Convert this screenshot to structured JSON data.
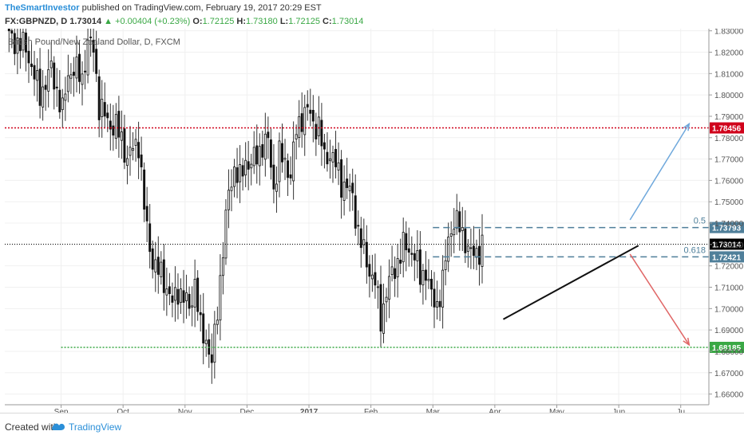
{
  "header": {
    "author": "TheSmartInvestor",
    "published_text": "published on TradingView.com, February 19, 2017 20:29 EST",
    "symbol": "FX:GBPNZD, D",
    "last": "1.73014",
    "change": "▲ +0.00404 (+0.23%)",
    "o_label": "O:",
    "o": "1.72125",
    "h_label": "H:",
    "h": "1.73180",
    "l_label": "L:",
    "l": "1.72125",
    "c_label": "C:",
    "c": "1.73014"
  },
  "footer": {
    "created_with": "Created with",
    "brand": "TradingView"
  },
  "chart_data": {
    "type": "candlestick",
    "title": "British Pound/New Zealand Dollar, D, FXCM",
    "ylim": [
      1.655,
      1.831
    ],
    "y_ticks": [
      "1.66000",
      "1.67000",
      "1.68000",
      "1.69000",
      "1.70000",
      "1.71000",
      "1.72000",
      "1.73000",
      "1.74000",
      "1.75000",
      "1.76000",
      "1.77000",
      "1.78000",
      "1.79000",
      "1.80000",
      "1.81000",
      "1.82000",
      "1.83000"
    ],
    "x_labels": [
      "Sep",
      "Oct",
      "Nov",
      "Dec",
      "2017",
      "Feb",
      "Mar",
      "Apr",
      "May",
      "Jun",
      "Ju"
    ],
    "price_levels": [
      {
        "label": "1.78456",
        "value": 1.78456,
        "color": "#d0021b",
        "style": "dotted"
      },
      {
        "label": "1.73793",
        "value": 1.73793,
        "color": "#4f7f9a",
        "style": "dashed",
        "fib": "0.5"
      },
      {
        "label": "1.72421",
        "value": 1.72421,
        "color": "#4f7f9a",
        "style": "dashed",
        "fib": "0.618"
      },
      {
        "label": "1.68185",
        "value": 1.68185,
        "color": "#3aa845",
        "style": "dotted"
      },
      {
        "label": "1.73014",
        "value": 1.73014,
        "color": "#000000",
        "style": "dotted",
        "current": true
      }
    ],
    "trendline": {
      "from": [
        1.695
      ],
      "to": [
        1.7295
      ]
    },
    "arrows": [
      {
        "direction": "up",
        "color": "#6fa8dc",
        "from_value": 1.7415,
        "to_value": 1.7865
      },
      {
        "direction": "down",
        "color": "#e06666",
        "from_value": 1.7255,
        "to_value": 1.683
      }
    ],
    "close_path": [
      [
        0,
        1.827
      ],
      [
        6,
        1.822
      ],
      [
        11,
        1.8
      ],
      [
        15,
        1.812
      ],
      [
        19,
        1.792
      ],
      [
        21,
        1.81
      ],
      [
        23,
        1.812
      ],
      [
        26,
        1.808
      ],
      [
        28,
        1.824
      ],
      [
        30,
        1.822
      ],
      [
        32,
        1.795
      ],
      [
        34,
        1.79
      ],
      [
        36,
        1.786
      ],
      [
        38,
        1.785
      ],
      [
        40,
        1.779
      ],
      [
        42,
        1.77
      ],
      [
        44,
        1.775
      ],
      [
        46,
        1.778
      ],
      [
        48,
        1.747
      ],
      [
        50,
        1.728
      ],
      [
        52,
        1.719
      ],
      [
        54,
        1.716
      ],
      [
        56,
        1.71
      ],
      [
        58,
        1.702
      ],
      [
        60,
        1.709
      ],
      [
        62,
        1.705
      ],
      [
        64,
        1.7
      ],
      [
        66,
        1.712
      ],
      [
        68,
        1.69
      ],
      [
        70,
        1.686
      ],
      [
        72,
        1.674
      ],
      [
        74,
        1.7
      ],
      [
        76,
        1.728
      ],
      [
        78,
        1.754
      ],
      [
        80,
        1.766
      ],
      [
        82,
        1.76
      ],
      [
        84,
        1.769
      ],
      [
        86,
        1.768
      ],
      [
        88,
        1.771
      ],
      [
        90,
        1.777
      ],
      [
        92,
        1.778
      ],
      [
        94,
        1.756
      ],
      [
        96,
        1.772
      ],
      [
        98,
        1.768
      ],
      [
        100,
        1.763
      ],
      [
        102,
        1.783
      ],
      [
        104,
        1.79
      ],
      [
        106,
        1.793
      ],
      [
        108,
        1.787
      ],
      [
        110,
        1.785
      ],
      [
        112,
        1.77
      ],
      [
        114,
        1.773
      ],
      [
        116,
        1.767
      ],
      [
        118,
        1.759
      ],
      [
        120,
        1.757
      ],
      [
        122,
        1.752
      ],
      [
        124,
        1.736
      ],
      [
        126,
        1.726
      ],
      [
        128,
        1.718
      ],
      [
        130,
        1.712
      ],
      [
        132,
        1.695
      ],
      [
        134,
        1.708
      ],
      [
        136,
        1.716
      ],
      [
        138,
        1.722
      ],
      [
        140,
        1.729
      ],
      [
        142,
        1.728
      ],
      [
        144,
        1.725
      ],
      [
        146,
        1.715
      ],
      [
        148,
        1.718
      ],
      [
        150,
        1.705
      ],
      [
        152,
        1.702
      ],
      [
        154,
        1.712
      ],
      [
        156,
        1.733
      ],
      [
        158,
        1.741
      ],
      [
        160,
        1.738
      ],
      [
        162,
        1.732
      ],
      [
        164,
        1.725
      ],
      [
        166,
        1.726
      ],
      [
        168,
        1.73
      ]
    ],
    "grid": true,
    "x_ticks_at_index": [
      20,
      42,
      64,
      86,
      108,
      130,
      152,
      174,
      196,
      218,
      240
    ]
  }
}
